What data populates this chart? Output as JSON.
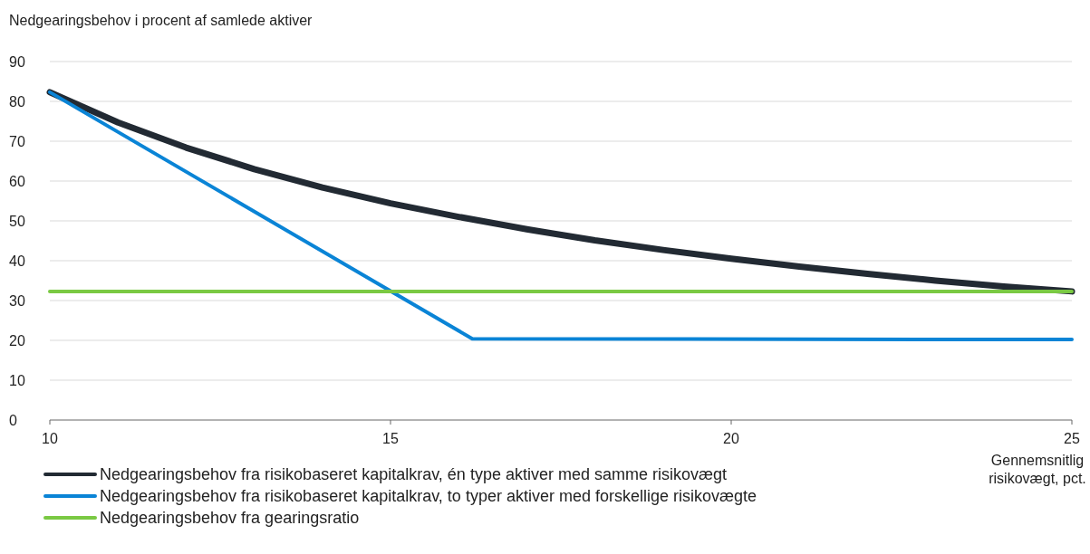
{
  "chart_data": {
    "type": "line",
    "ylabel": "Nedgearingsbehov i procent af samlede aktiver",
    "xlabel": "Gennemsnitlig risikovægt, pct.",
    "xlim": [
      10,
      25
    ],
    "xticks": [
      10,
      15,
      20,
      25
    ],
    "ylim": [
      0,
      90
    ],
    "yticks": [
      0,
      10,
      20,
      30,
      40,
      50,
      60,
      70,
      80,
      90
    ],
    "grid": "y",
    "legend": "bottom",
    "marker": "none",
    "line_style": "solid",
    "series": [
      {
        "name": "Nedgearingsbehov fra risikobaseret kapitalkrav, én type aktiver med samme risikovægt",
        "color": "#222a33",
        "x": [
          10,
          11,
          12,
          13,
          14,
          15,
          16,
          17,
          18,
          19,
          20,
          21,
          22,
          23,
          24,
          25
        ],
        "values": [
          82.3,
          74.7,
          68.4,
          63.0,
          58.4,
          54.4,
          51.0,
          47.9,
          45.1,
          42.7,
          40.5,
          38.5,
          36.7,
          35.0,
          33.5,
          32.3
        ]
      },
      {
        "name": "Nedgearingsbehov fra risikobaseret kapitalkrav, to typer aktiver med forskellige risikovægte",
        "color": "#0a84d6",
        "x": [
          10,
          16.2,
          25
        ],
        "values": [
          82.3,
          20.4,
          20.2
        ]
      },
      {
        "name": "Nedgearingsbehov fra gearingsratio",
        "color": "#7ac943",
        "x": [
          10,
          25
        ],
        "values": [
          32.3,
          32.3
        ]
      }
    ]
  }
}
